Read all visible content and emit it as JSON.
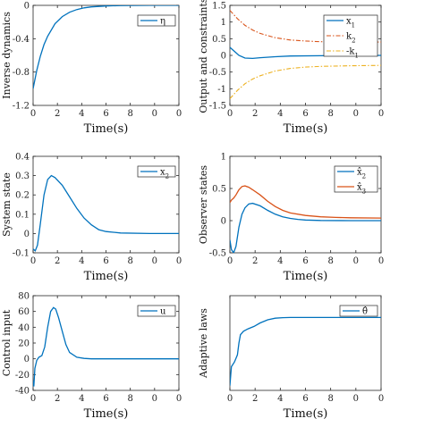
{
  "chart_data": [
    {
      "type": "line",
      "xlabel": "Time(s)",
      "ylabel": "Inverse dynamics",
      "xlim": [
        0,
        10
      ],
      "ylim": [
        -1.2,
        0
      ],
      "x_ticks": [
        "0",
        "2",
        "4",
        "6",
        "8",
        "0",
        "0"
      ],
      "y_ticks": [
        "0",
        "-0.4",
        "-0.8",
        "-1.2"
      ],
      "legend_position": "top-right",
      "series": [
        {
          "name": "η",
          "color": "#0072BD",
          "dash": "",
          "width": 1.3,
          "x": [
            0,
            0.25,
            0.5,
            0.75,
            1,
            1.5,
            2,
            2.5,
            3,
            3.5,
            4,
            5,
            6,
            8,
            10
          ],
          "y": [
            -1.0,
            -0.78,
            -0.61,
            -0.47,
            -0.37,
            -0.22,
            -0.135,
            -0.082,
            -0.05,
            -0.03,
            -0.018,
            -0.007,
            -0.002,
            0,
            0
          ]
        }
      ]
    },
    {
      "type": "line",
      "xlabel": "Time(s)",
      "ylabel": "Output and constraints",
      "xlim": [
        0,
        10
      ],
      "ylim": [
        -1.5,
        1.5
      ],
      "x_ticks": [
        "0",
        "2",
        "4",
        "6",
        "8",
        "0",
        "0"
      ],
      "y_ticks": [
        "1.5",
        "1",
        "0.5",
        "0",
        "-0.5",
        "-1",
        "-1.5"
      ],
      "legend_position": "top-right",
      "series": [
        {
          "name": "x",
          "sub": "1",
          "color": "#0072BD",
          "dash": "",
          "width": 1.3,
          "x": [
            0,
            0.3,
            0.6,
            1,
            1.5,
            2,
            3,
            4,
            6,
            8,
            10
          ],
          "y": [
            0.24,
            0.12,
            0.0,
            -0.08,
            -0.09,
            -0.07,
            -0.04,
            -0.02,
            -0.01,
            0,
            0
          ]
        },
        {
          "name": "k",
          "sub": "2",
          "color": "#D95319",
          "dash": "5,2,1.5,2",
          "width": 1.1,
          "x": [
            0,
            0.5,
            1,
            1.5,
            2,
            3,
            4,
            5,
            6,
            8,
            10
          ],
          "y": [
            1.35,
            1.1,
            0.9,
            0.76,
            0.66,
            0.53,
            0.46,
            0.43,
            0.41,
            0.4,
            0.4
          ]
        },
        {
          "name": "-k",
          "sub": "1",
          "color": "#EDB120",
          "dash": "5,2,1.5,2",
          "width": 1.1,
          "x": [
            0,
            0.5,
            1,
            1.5,
            2,
            3,
            4,
            5,
            6,
            8,
            10
          ],
          "y": [
            -1.3,
            -1.05,
            -0.85,
            -0.71,
            -0.61,
            -0.47,
            -0.39,
            -0.35,
            -0.33,
            -0.31,
            -0.3
          ]
        }
      ]
    },
    {
      "type": "line",
      "xlabel": "Time(s)",
      "ylabel": "System state",
      "xlim": [
        0,
        10
      ],
      "ylim": [
        -0.1,
        0.4
      ],
      "x_ticks": [
        "0",
        "2",
        "4",
        "6",
        "8",
        "0",
        "0"
      ],
      "y_ticks": [
        "0.4",
        "0.3",
        "0.2",
        "0.1",
        "0",
        "-0.1"
      ],
      "legend_position": "top-right",
      "series": [
        {
          "name": "x",
          "sub": "2",
          "color": "#0072BD",
          "dash": "",
          "width": 1.3,
          "x": [
            0,
            0.15,
            0.3,
            0.5,
            0.75,
            1,
            1.25,
            1.5,
            2,
            2.5,
            3,
            3.5,
            4,
            4.5,
            5,
            6,
            8,
            10
          ],
          "y": [
            -0.08,
            -0.09,
            -0.06,
            0.05,
            0.2,
            0.28,
            0.3,
            0.29,
            0.25,
            0.19,
            0.13,
            0.08,
            0.045,
            0.02,
            0.01,
            0.003,
            0,
            0
          ]
        }
      ]
    },
    {
      "type": "line",
      "xlabel": "Time(s)",
      "ylabel": "Observer states",
      "xlim": [
        0,
        10
      ],
      "ylim": [
        -0.5,
        1
      ],
      "x_ticks": [
        "0",
        "2",
        "4",
        "6",
        "8",
        "0",
        "0"
      ],
      "y_ticks": [
        "1",
        "0.5",
        "0",
        "-0.5"
      ],
      "legend_position": "top-right",
      "series": [
        {
          "name": "x̂",
          "sub": "2",
          "color": "#0072BD",
          "dash": "",
          "width": 1.3,
          "x": [
            0,
            0.1,
            0.25,
            0.4,
            0.6,
            0.8,
            1,
            1.25,
            1.5,
            2,
            2.5,
            3,
            3.5,
            4,
            4.5,
            5,
            6,
            8,
            10
          ],
          "y": [
            -0.3,
            -0.45,
            -0.5,
            -0.4,
            -0.1,
            0.1,
            0.2,
            0.26,
            0.27,
            0.23,
            0.16,
            0.1,
            0.06,
            0.035,
            0.02,
            0.01,
            0.003,
            0,
            0
          ]
        },
        {
          "name": "x̂",
          "sub": "3",
          "color": "#D95319",
          "dash": "",
          "width": 1.3,
          "x": [
            0,
            0.1,
            0.25,
            0.4,
            0.6,
            0.8,
            1,
            1.25,
            1.5,
            2,
            2.5,
            3,
            3.5,
            4,
            5,
            6,
            7,
            8,
            10
          ],
          "y": [
            0.28,
            0.32,
            0.35,
            0.4,
            0.48,
            0.53,
            0.54,
            0.52,
            0.48,
            0.4,
            0.3,
            0.22,
            0.16,
            0.12,
            0.08,
            0.06,
            0.05,
            0.045,
            0.04
          ]
        }
      ]
    },
    {
      "type": "line",
      "xlabel": "Time(s)",
      "ylabel": "Control input",
      "xlim": [
        0,
        10
      ],
      "ylim": [
        -40,
        80
      ],
      "x_ticks": [
        "0",
        "2",
        "4",
        "6",
        "8",
        "0",
        "0"
      ],
      "y_ticks": [
        "80",
        "60",
        "40",
        "20",
        "0",
        "-20",
        "-40"
      ],
      "legend_position": "top-right",
      "series": [
        {
          "name": "u",
          "color": "#0072BD",
          "dash": "",
          "width": 1.3,
          "x": [
            0,
            0.05,
            0.12,
            0.25,
            0.4,
            0.6,
            0.8,
            1.0,
            1.2,
            1.4,
            1.55,
            1.75,
            2.0,
            2.25,
            2.5,
            3.0,
            3.5,
            4,
            5,
            6,
            8,
            10
          ],
          "y": [
            -28,
            -35,
            -12,
            -2,
            2,
            4,
            15,
            40,
            60,
            65,
            63,
            52,
            35,
            18,
            8,
            2,
            0.5,
            0,
            0,
            0,
            0,
            0
          ]
        }
      ]
    },
    {
      "type": "line",
      "xlabel": "Time(s)",
      "ylabel": "Adaptive laws",
      "xlim": [
        0,
        10
      ],
      "ylim": [
        0,
        0.4
      ],
      "x_ticks": [
        "0",
        "2",
        "4",
        "6",
        "8",
        "0",
        "0"
      ],
      "y_ticks": [],
      "legend_position": "top-right",
      "series": [
        {
          "name": "θ̂",
          "color": "#0072BD",
          "dash": "",
          "width": 1.3,
          "x": [
            0,
            0.1,
            0.3,
            0.5,
            0.6,
            0.7,
            0.9,
            1.2,
            1.6,
            2.0,
            2.5,
            3.0,
            3.5,
            4,
            6,
            8,
            10
          ],
          "y": [
            0.02,
            0.1,
            0.12,
            0.15,
            0.2,
            0.235,
            0.25,
            0.26,
            0.27,
            0.285,
            0.298,
            0.305,
            0.307,
            0.308,
            0.308,
            0.308,
            0.308
          ]
        }
      ]
    }
  ]
}
